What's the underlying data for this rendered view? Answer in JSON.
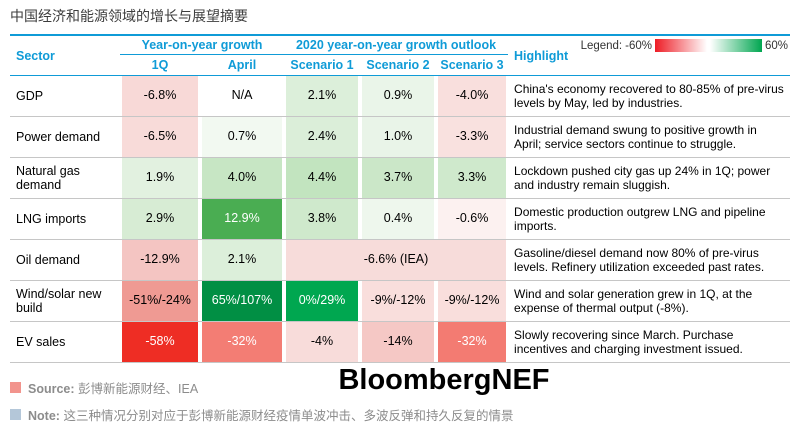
{
  "page_title": "中国经济和能源领域的增长与展望摘要",
  "colors": {
    "accent_blue": "#0f9bd7",
    "legend_red": "#ee1c25",
    "legend_green": "#00a650",
    "row_line_gray": "#c6c6c6",
    "source_bullet": "#f2948d",
    "note_bullet": "#b4c7d9",
    "footer_text": "#8c8c8c"
  },
  "chart_data": {
    "type": "table",
    "title": "中国经济和能源领域的增长与展望摘要",
    "layout": "heatmap table, red negative to green positive, legend range -60% to 60%",
    "header": {
      "sector": "Sector",
      "yoy_group": "Year-on-year growth",
      "outlook_group": "2020 year-on-year growth outlook",
      "highlight": "Highlight"
    },
    "subheaders": [
      "1Q",
      "April",
      "Scenario 1",
      "Scenario 2",
      "Scenario 3"
    ],
    "legend": {
      "label": "Legend:",
      "min": "-60%",
      "max": "60%"
    },
    "rows": [
      {
        "sector": "GDP",
        "cells": [
          {
            "text": "-6.8%",
            "bg": "#f8d9d7"
          },
          {
            "text": "N/A",
            "bg": "#ffffff"
          },
          {
            "text": "2.1%",
            "bg": "#dcefda"
          },
          {
            "text": "0.9%",
            "bg": "#eaf5e9"
          },
          {
            "text": "-4.0%",
            "bg": "#f9dfdd"
          }
        ],
        "highlight": "China's economy recovered to 80-85% of pre-virus levels by May, led by industries."
      },
      {
        "sector": "Power demand",
        "cells": [
          {
            "text": "-6.5%",
            "bg": "#f8dbd9"
          },
          {
            "text": "0.7%",
            "bg": "#f2f9f1"
          },
          {
            "text": "2.4%",
            "bg": "#dbeed9"
          },
          {
            "text": "1.0%",
            "bg": "#e9f4e8"
          },
          {
            "text": "-3.3%",
            "bg": "#f9e1df"
          }
        ],
        "highlight": "Industrial demand swung to positive growth in April; service sectors continue to struggle."
      },
      {
        "sector": "Natural gas demand",
        "cells": [
          {
            "text": "1.9%",
            "bg": "#e2f1e0"
          },
          {
            "text": "4.0%",
            "bg": "#c7e6c4"
          },
          {
            "text": "4.4%",
            "bg": "#c2e4bf"
          },
          {
            "text": "3.7%",
            "bg": "#cbe7c8"
          },
          {
            "text": "3.3%",
            "bg": "#cfe9cc"
          }
        ],
        "highlight": "Lockdown pushed city gas up 24% in 1Q; power and industry remain sluggish."
      },
      {
        "sector": "LNG imports",
        "cells": [
          {
            "text": "2.9%",
            "bg": "#d7ecd4"
          },
          {
            "text": "12.9%",
            "bg": "#4aad52",
            "fg": "#ffffff"
          },
          {
            "text": "3.8%",
            "bg": "#cfe9cc"
          },
          {
            "text": "0.4%",
            "bg": "#eef7ed"
          },
          {
            "text": "-0.6%",
            "bg": "#fcf1f0"
          }
        ],
        "highlight": "Domestic production outgrew LNG and pipeline imports."
      },
      {
        "sector": "Oil demand",
        "cells": [
          {
            "text": "-12.9%",
            "bg": "#f4c5c2"
          },
          {
            "text": "2.1%",
            "bg": "#dcefda"
          },
          {
            "text": "-6.6% (IEA)",
            "bg": "#f7dcda",
            "span": 3
          }
        ],
        "highlight": "Gasoline/diesel demand now 80% of pre-virus levels. Refinery utilization exceeded past rates."
      },
      {
        "sector": "Wind/solar new build",
        "cells": [
          {
            "text": "-51%/-24%",
            "bg": "#ef9a93"
          },
          {
            "text": "65%/107%",
            "bg": "#018f44",
            "fg": "#ffffff"
          },
          {
            "text": "0%/29%",
            "bg": "#00a750",
            "fg": "#ffffff"
          },
          {
            "text": "-9%/-12%",
            "bg": "#f9dedc"
          },
          {
            "text": "-9%/-12%",
            "bg": "#f9dedc"
          }
        ],
        "highlight": "Wind and solar generation grew in 1Q, at the expense of thermal output (-8%)."
      },
      {
        "sector": "EV sales",
        "cells": [
          {
            "text": "-58%",
            "bg": "#ee2d24",
            "fg": "#ffffff"
          },
          {
            "text": "-32%",
            "bg": "#f37d74",
            "fg": "#ffffff"
          },
          {
            "text": "-4%",
            "bg": "#f8dcda"
          },
          {
            "text": "-14%",
            "bg": "#f5c8c5"
          },
          {
            "text": "-32%",
            "bg": "#f37b72",
            "fg": "#ffffff"
          }
        ],
        "highlight": "Slowly recovering since March. Purchase incentives and charging investment issued."
      }
    ]
  },
  "footer": {
    "source_label": "Source:",
    "source_text": "彭博新能源财经、IEA",
    "brand": "BloombergNEF",
    "note_label": "Note:",
    "note_text": "这三种情况分别对应于彭博新能源财经疫情单波冲击、多波反弹和持久反复的情景"
  }
}
